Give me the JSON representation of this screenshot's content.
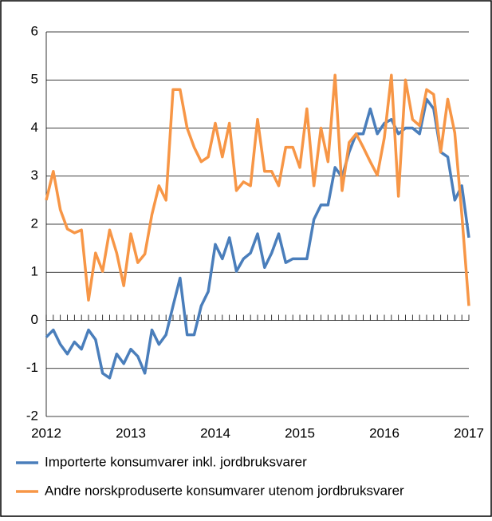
{
  "chart_data": {
    "type": "line",
    "x": [
      2012,
      2012.0833,
      2012.1667,
      2012.25,
      2012.3333,
      2012.4167,
      2012.5,
      2012.5833,
      2012.6667,
      2012.75,
      2012.8333,
      2012.9167,
      2013,
      2013.0833,
      2013.1667,
      2013.25,
      2013.3333,
      2013.4167,
      2013.5,
      2013.5833,
      2013.6667,
      2013.75,
      2013.8333,
      2013.9167,
      2014,
      2014.0833,
      2014.1667,
      2014.25,
      2014.3333,
      2014.4167,
      2014.5,
      2014.5833,
      2014.6667,
      2014.75,
      2014.8333,
      2014.9167,
      2015,
      2015.0833,
      2015.1667,
      2015.25,
      2015.3333,
      2015.4167,
      2015.5,
      2015.5833,
      2015.6667,
      2015.75,
      2015.8333,
      2015.9167,
      2016,
      2016.0833,
      2016.1667,
      2016.25,
      2016.3333,
      2016.4167,
      2016.5,
      2016.5833,
      2016.6667,
      2016.75,
      2016.8333,
      2016.9167,
      2017
    ],
    "series": [
      {
        "name": "Importerte konsumvarer inkl. jordbruksvarer",
        "color": "#4a7ebb",
        "values": [
          -0.35,
          -0.2,
          -0.5,
          -0.7,
          -0.45,
          -0.6,
          -0.2,
          -0.4,
          -1.1,
          -1.2,
          -0.7,
          -0.9,
          -0.6,
          -0.75,
          -1.1,
          -0.2,
          -0.5,
          -0.3,
          0.3,
          0.88,
          -0.3,
          -0.3,
          0.3,
          0.6,
          1.58,
          1.28,
          1.72,
          1.02,
          1.28,
          1.4,
          1.8,
          1.1,
          1.4,
          1.8,
          1.2,
          1.28,
          1.28,
          1.28,
          2.1,
          2.4,
          2.4,
          3.18,
          2.98,
          3.5,
          3.88,
          3.88,
          4.4,
          3.88,
          4.1,
          4.18,
          3.88,
          4.0,
          4.0,
          3.88,
          4.6,
          4.4,
          3.5,
          3.4,
          2.5,
          2.8,
          1.72
        ]
      },
      {
        "name": "Andre norskproduserte konsumvarer utenom jordbruksvarer",
        "color": "#f79646",
        "values": [
          2.5,
          3.1,
          2.3,
          1.9,
          1.82,
          1.88,
          0.42,
          1.4,
          1.02,
          1.88,
          1.4,
          0.72,
          1.8,
          1.2,
          1.38,
          2.2,
          2.8,
          2.5,
          4.8,
          4.8,
          4.0,
          3.6,
          3.3,
          3.4,
          4.1,
          3.4,
          4.1,
          2.7,
          2.88,
          2.8,
          4.18,
          3.1,
          3.1,
          2.8,
          3.6,
          3.6,
          3.18,
          4.4,
          2.8,
          4.0,
          3.3,
          5.1,
          2.7,
          3.7,
          3.88,
          3.6,
          3.3,
          3.02,
          3.8,
          5.1,
          2.58,
          5.0,
          4.18,
          4.05,
          4.8,
          4.7,
          3.5,
          4.6,
          3.9,
          2.2,
          0.3
        ]
      }
    ],
    "xlim": [
      2012,
      2017
    ],
    "xticks": [
      2012,
      2013,
      2014,
      2015,
      2016,
      2017
    ],
    "ylim": [
      -2,
      6
    ],
    "yticks": [
      -2,
      -1,
      0,
      1,
      2,
      3,
      4,
      5,
      6
    ],
    "grid": true,
    "legend": "bottom"
  }
}
